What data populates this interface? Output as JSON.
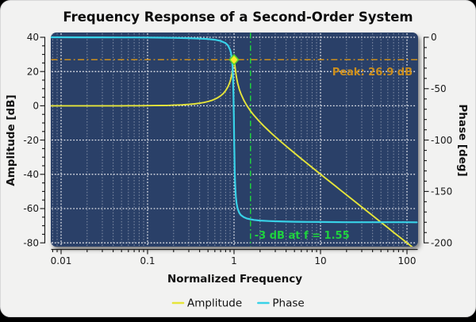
{
  "chart_data": {
    "type": "line",
    "title": "Frequency Response of a Second-Order System",
    "xlabel": "Normalized Frequency",
    "ylabel_left": "Amplitude [dB]",
    "ylabel_right": "Phase [deg]",
    "x_scale": "log",
    "xlim": [
      0.01,
      100
    ],
    "ylim_left": [
      -80,
      40
    ],
    "ylim_right": [
      -200,
      0
    ],
    "grid": "on",
    "legend_position": "bottom-center",
    "x_ticks": [
      {
        "value": 0.01,
        "label": "0.01"
      },
      {
        "value": 0.1,
        "label": "0.1"
      },
      {
        "value": 1,
        "label": "1"
      },
      {
        "value": 10,
        "label": "10"
      },
      {
        "value": 100,
        "label": "100"
      }
    ],
    "left_ticks": [
      40,
      20,
      0,
      -20,
      -40,
      -60,
      -80
    ],
    "right_ticks": [
      0,
      -50,
      -100,
      -150,
      -200
    ],
    "colors": {
      "plot_bg": "#2b4067",
      "amplitude": "#e6e53a",
      "phase": "#38d2e8",
      "grid_major": "#f5f5f8",
      "grid_minor": "#97a1b5",
      "marker_fill": "#ffe92a",
      "marker_edge": "#59d22e",
      "peak_accent": "#cc8f1e",
      "cutoff_accent": "#1fd23e",
      "spine": "#1a1a1a"
    },
    "annotations": {
      "peak_label": "Peak: 26.9 dB",
      "peak_value_db": 26.9,
      "peak_freq": 1.0,
      "cutoff_label": "-3 dB at f = 1.55",
      "cutoff_freq": 1.55
    },
    "marker": {
      "freq": 1.0,
      "amplitude_db": 26.9
    },
    "legend": [
      {
        "label": "Amplitude",
        "color": "#e6e53a"
      },
      {
        "label": "Phase",
        "color": "#38d2e8"
      }
    ],
    "series": [
      {
        "name": "Amplitude",
        "axis": "left",
        "points": [
          [
            0.0075,
            0.0
          ],
          [
            0.01,
            0.0
          ],
          [
            0.015,
            0.0
          ],
          [
            0.02,
            0.0
          ],
          [
            0.03,
            0.01
          ],
          [
            0.04,
            0.01
          ],
          [
            0.05,
            0.02
          ],
          [
            0.06,
            0.03
          ],
          [
            0.07,
            0.04
          ],
          [
            0.08,
            0.06
          ],
          [
            0.1,
            0.09
          ],
          [
            0.12,
            0.13
          ],
          [
            0.15,
            0.2
          ],
          [
            0.17,
            0.25
          ],
          [
            0.2,
            0.36
          ],
          [
            0.25,
            0.56
          ],
          [
            0.3,
            0.82
          ],
          [
            0.35,
            1.12
          ],
          [
            0.4,
            1.51
          ],
          [
            0.45,
            1.96
          ],
          [
            0.5,
            2.5
          ],
          [
            0.55,
            3.12
          ],
          [
            0.6,
            3.87
          ],
          [
            0.65,
            4.76
          ],
          [
            0.7,
            5.83
          ],
          [
            0.75,
            7.15
          ],
          [
            0.8,
            8.83
          ],
          [
            0.85,
            11.05
          ],
          [
            0.88,
            12.8
          ],
          [
            0.9,
            14.23
          ],
          [
            0.92,
            15.97
          ],
          [
            0.94,
            18.14
          ],
          [
            0.95,
            19.45
          ],
          [
            0.96,
            20.95
          ],
          [
            0.97,
            22.66
          ],
          [
            0.98,
            24.52
          ],
          [
            0.985,
            25.43
          ],
          [
            0.99,
            26.2
          ],
          [
            0.995,
            26.73
          ],
          [
            1.0,
            26.9
          ],
          [
            1.005,
            26.65
          ],
          [
            1.01,
            26.04
          ],
          [
            1.015,
            25.2
          ],
          [
            1.02,
            24.25
          ],
          [
            1.03,
            22.31
          ],
          [
            1.04,
            20.52
          ],
          [
            1.05,
            18.94
          ],
          [
            1.07,
            16.32
          ],
          [
            1.1,
            13.32
          ],
          [
            1.15,
            9.72
          ],
          [
            1.2,
            7.07
          ],
          [
            1.3,
            3.19
          ],
          [
            1.4,
            0.34
          ],
          [
            1.55,
            -2.95
          ],
          [
            1.7,
            -5.54
          ],
          [
            1.9,
            -8.34
          ],
          [
            2.0,
            -9.55
          ],
          [
            2.2,
            -11.69
          ],
          [
            2.5,
            -14.4
          ],
          [
            2.7,
            -15.97
          ],
          [
            3.0,
            -18.06
          ],
          [
            3.5,
            -21.02
          ],
          [
            4.0,
            -23.52
          ],
          [
            4.5,
            -25.69
          ],
          [
            5.0,
            -27.6
          ],
          [
            6.0,
            -30.88
          ],
          [
            7.0,
            -33.62
          ],
          [
            8.0,
            -35.99
          ],
          [
            10,
            -39.91
          ],
          [
            12,
            -43.11
          ],
          [
            15,
            -47.0
          ],
          [
            17,
            -49.2
          ],
          [
            20,
            -52.02
          ],
          [
            25,
            -55.9
          ],
          [
            30,
            -59.08
          ],
          [
            40,
            -64.07
          ],
          [
            50,
            -67.96
          ],
          [
            60,
            -71.12
          ],
          [
            70,
            -73.9
          ],
          [
            85,
            -77.18
          ],
          [
            100,
            -80.0
          ],
          [
            115,
            -82.43
          ],
          [
            130,
            -84.56
          ]
        ]
      },
      {
        "name": "Phase",
        "axis": "right",
        "points": [
          [
            0.0075,
            -0.02
          ],
          [
            0.01,
            -0.03
          ],
          [
            0.02,
            -0.05
          ],
          [
            0.03,
            -0.08
          ],
          [
            0.05,
            -0.13
          ],
          [
            0.07,
            -0.18
          ],
          [
            0.1,
            -0.26
          ],
          [
            0.15,
            -0.4
          ],
          [
            0.2,
            -0.54
          ],
          [
            0.3,
            -0.85
          ],
          [
            0.4,
            -1.23
          ],
          [
            0.5,
            -1.73
          ],
          [
            0.6,
            -2.43
          ],
          [
            0.7,
            -3.55
          ],
          [
            0.8,
            -5.74
          ],
          [
            0.85,
            -7.88
          ],
          [
            0.9,
            -12.08
          ],
          [
            0.92,
            -15.14
          ],
          [
            0.94,
            -20.06
          ],
          [
            0.95,
            -23.77
          ],
          [
            0.96,
            -28.97
          ],
          [
            0.97,
            -36.57
          ],
          [
            0.98,
            -48.5
          ],
          [
            0.985,
            -56.2
          ],
          [
            0.99,
            -66.04
          ],
          [
            0.995,
            -77.48
          ],
          [
            1.0,
            -90.0
          ],
          [
            1.005,
            -102.7
          ],
          [
            1.01,
            -113.75
          ],
          [
            1.015,
            -123.4
          ],
          [
            1.02,
            -131.2
          ],
          [
            1.03,
            -142.6
          ],
          [
            1.04,
            -150.0
          ],
          [
            1.05,
            -155.2
          ],
          [
            1.07,
            -161.5
          ],
          [
            1.1,
            -166.7
          ],
          [
            1.15,
            -170.8
          ],
          [
            1.2,
            -173.0
          ],
          [
            1.3,
            -175.1
          ],
          [
            1.4,
            -176.2
          ],
          [
            1.55,
            -177.1
          ],
          [
            1.7,
            -177.7
          ],
          [
            2.0,
            -178.3
          ],
          [
            2.5,
            -178.8
          ],
          [
            3.0,
            -179.0
          ],
          [
            4.0,
            -179.3
          ],
          [
            5.0,
            -179.5
          ],
          [
            7.0,
            -179.6
          ],
          [
            10,
            -179.7
          ],
          [
            20,
            -179.9
          ],
          [
            50,
            -179.95
          ],
          [
            100,
            -179.97
          ],
          [
            130,
            -179.98
          ]
        ]
      }
    ]
  }
}
